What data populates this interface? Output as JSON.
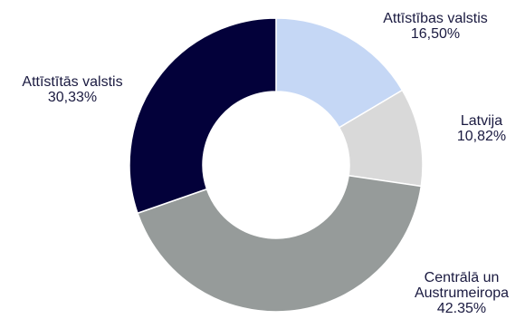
{
  "chart_data": {
    "type": "pie",
    "donut": true,
    "title": "",
    "legend": "none",
    "slices": [
      {
        "label_lines": [
          "Attīstības valstis"
        ],
        "value_text": "16,50%",
        "value": 16.5,
        "color": "#c5d7f5"
      },
      {
        "label_lines": [
          "Latvija"
        ],
        "value_text": "10,82%",
        "value": 10.82,
        "color": "#d9d9d9"
      },
      {
        "label_lines": [
          "Centrālā un",
          "Austrumeiropa"
        ],
        "value_text": "42.35%",
        "value": 42.35,
        "color": "#969b9a"
      },
      {
        "label_lines": [
          "Attīstītās valstis"
        ],
        "value_text": "30,33%",
        "value": 30.33,
        "color": "#03013a"
      }
    ]
  }
}
